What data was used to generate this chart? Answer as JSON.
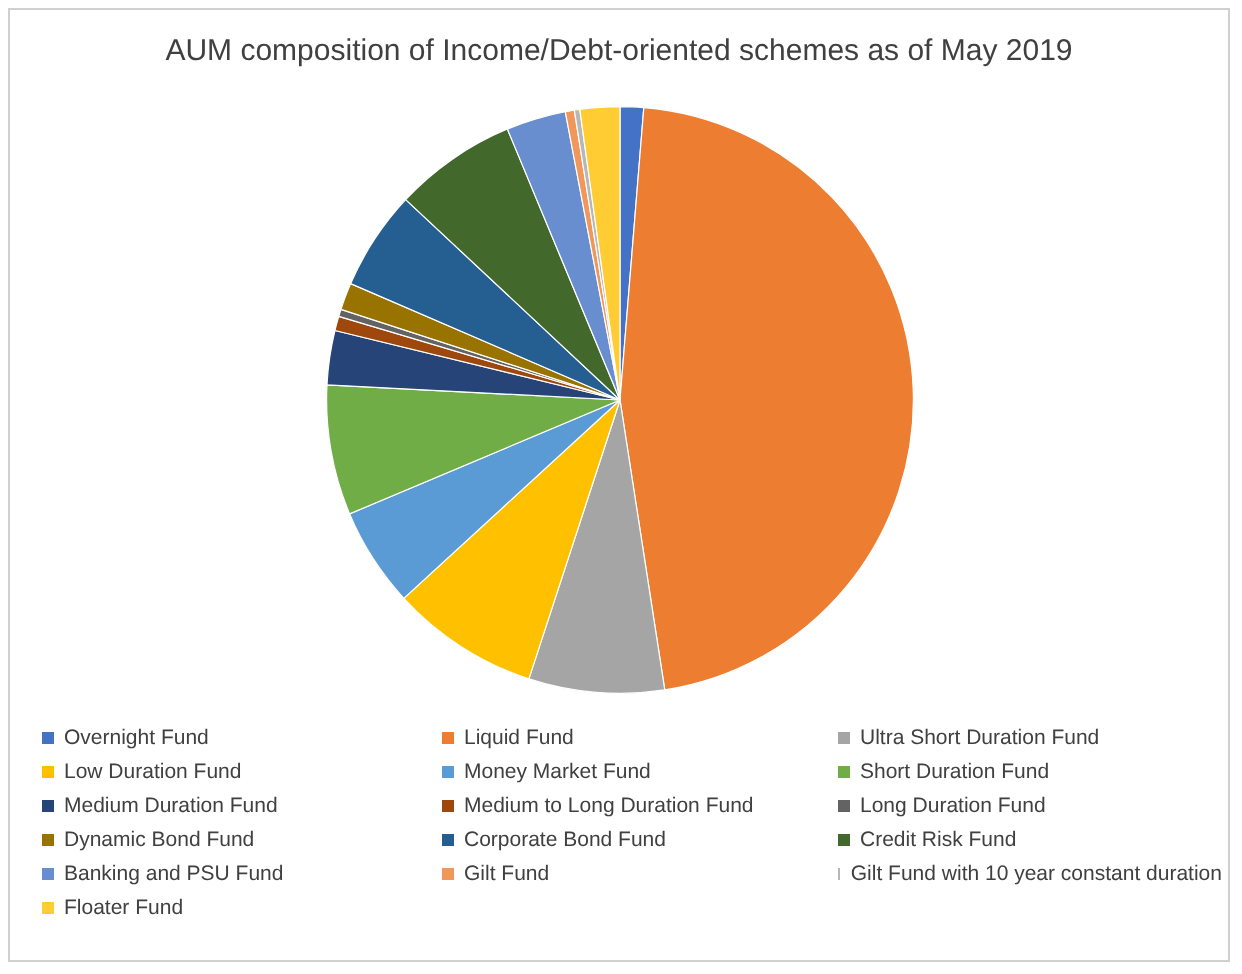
{
  "chart_data": {
    "type": "pie",
    "title": "AUM composition of Income/Debt-oriented schemes as of May 2019",
    "categories": [
      "Overnight Fund",
      "Liquid Fund",
      "Ultra Short Duration Fund",
      "Low Duration Fund",
      "Money Market Fund",
      "Short Duration Fund",
      "Medium Duration Fund",
      "Medium to Long Duration Fund",
      "Long Duration Fund",
      "Dynamic Bond Fund",
      "Corporate Bond Fund",
      "Credit Risk Fund",
      "Banking and PSU Fund",
      "Gilt Fund",
      "Gilt Fund with 10 year constant duration",
      "Floater Fund"
    ],
    "values": [
      1.3,
      46.5,
      7.5,
      8.2,
      5.5,
      7.2,
      3.0,
      0.8,
      0.4,
      1.5,
      5.5,
      6.8,
      3.3,
      0.5,
      0.3,
      2.2
    ],
    "colors": [
      "#4472c4",
      "#ed7d31",
      "#a5a5a5",
      "#ffc000",
      "#5b9bd5",
      "#70ad47",
      "#264478",
      "#9e480e",
      "#636363",
      "#997300",
      "#255e91",
      "#43682b",
      "#698ed0",
      "#f1975a",
      "#b7b7b7",
      "#ffcd33"
    ],
    "legend": "bottom"
  }
}
